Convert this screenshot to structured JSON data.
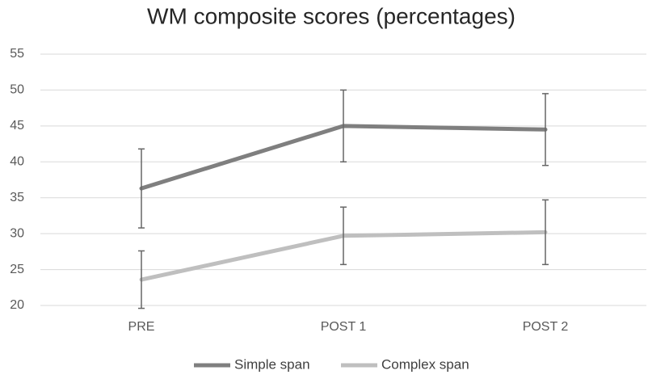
{
  "chart_data": {
    "type": "line",
    "title": "WM composite scores (percentages)",
    "categories": [
      "PRE",
      "POST 1",
      "POST 2"
    ],
    "series": [
      {
        "name": "Simple span",
        "color": "#7f7f7f",
        "values": [
          36.3,
          45,
          44.5
        ],
        "errors": [
          5.5,
          5,
          5
        ]
      },
      {
        "name": "Complex span",
        "color": "#bfbfbf",
        "values": [
          23.6,
          29.7,
          30.2
        ],
        "errors": [
          4,
          4,
          4.5
        ]
      }
    ],
    "error_bar_color": "#666666",
    "ylim": [
      20,
      55
    ],
    "yticks": [
      20,
      25,
      30,
      35,
      40,
      45,
      50,
      55
    ],
    "grid": true,
    "legend": "bottom"
  }
}
